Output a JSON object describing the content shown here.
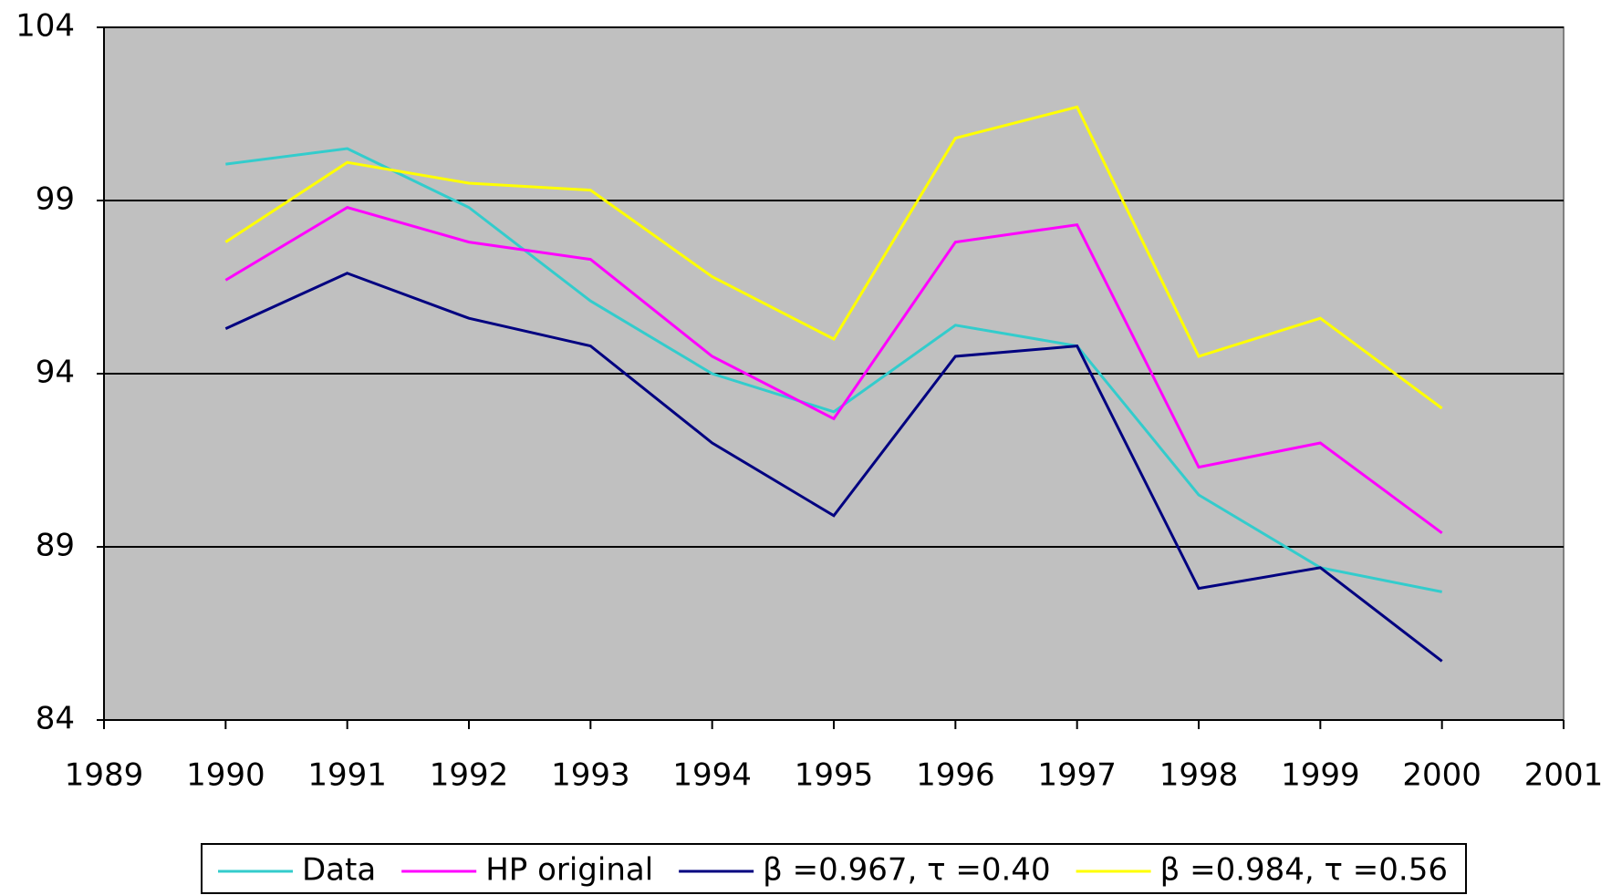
{
  "chart_data": {
    "type": "line",
    "x": [
      1990,
      1991,
      1992,
      1993,
      1994,
      1995,
      1996,
      1997,
      1998,
      1999,
      2000
    ],
    "series": [
      {
        "name": "Data",
        "color": "#33cccc",
        "values": [
          100.05,
          100.5,
          98.8,
          96.1,
          94.0,
          92.9,
          95.4,
          94.8,
          90.5,
          88.4,
          87.7
        ]
      },
      {
        "name": "HP original",
        "color": "#ff00ff",
        "values": [
          96.7,
          98.8,
          97.8,
          97.3,
          94.5,
          92.7,
          97.8,
          98.3,
          91.3,
          92.0,
          89.4
        ]
      },
      {
        "name": "β =0.967,  τ =0.40",
        "color": "#000080",
        "values": [
          95.3,
          96.9,
          95.6,
          94.8,
          92.0,
          89.9,
          94.5,
          94.8,
          87.8,
          88.4,
          85.7
        ]
      },
      {
        "name": "β =0.984,  τ =0.56",
        "color": "#ffff00",
        "values": [
          97.8,
          100.1,
          99.5,
          99.3,
          96.8,
          95.0,
          100.8,
          101.7,
          94.5,
          95.6,
          93.0
        ]
      }
    ],
    "xlim": [
      1989,
      2001
    ],
    "xticks": [
      1989,
      1990,
      1991,
      1992,
      1993,
      1994,
      1995,
      1996,
      1997,
      1998,
      1999,
      2000,
      2001
    ],
    "ylim": [
      84,
      104
    ],
    "yticks": [
      84,
      89,
      94,
      99,
      104
    ],
    "grid": true,
    "legend": "bottom"
  }
}
